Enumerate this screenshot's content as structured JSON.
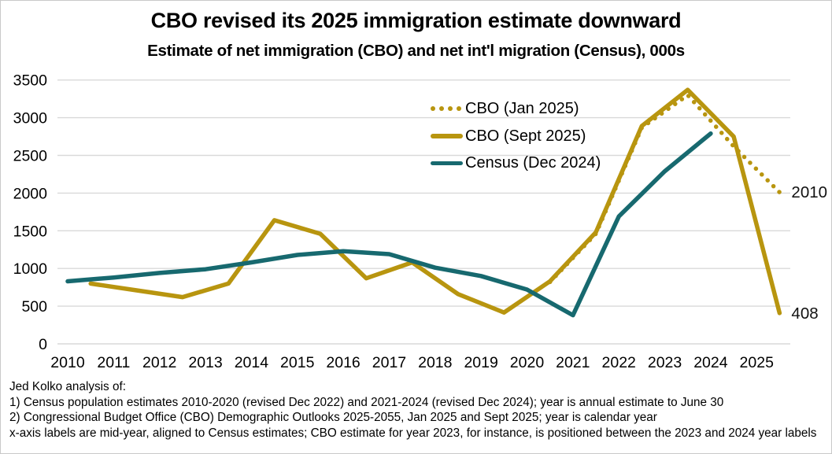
{
  "colors": {
    "gold": "#B8950F",
    "teal": "#17696F",
    "grid": "#D9D9D9",
    "background": "#FFFFFF"
  },
  "chart_data": {
    "type": "line",
    "title": "CBO revised its 2025 immigration estimate downward",
    "subtitle": "Estimate of net immigration (CBO) and net int'l migration (Census), 000s",
    "xlabel": "",
    "ylabel": "",
    "ylim": [
      0,
      3500
    ],
    "y_ticks": [
      0,
      500,
      1000,
      1500,
      2000,
      2500,
      3000,
      3500
    ],
    "x_ticks": [
      2010,
      2011,
      2012,
      2013,
      2014,
      2015,
      2016,
      2017,
      2018,
      2019,
      2020,
      2021,
      2022,
      2023,
      2024,
      2025
    ],
    "grid": "horizontal-only",
    "legend_position": "top-right-inside",
    "series": [
      {
        "id": "cbo-jan-2025",
        "name": "CBO (Jan 2025)",
        "style": "dotted",
        "color": "#B8950F",
        "color_key": "gold",
        "x_offset": 0.5,
        "years": [
          2020,
          2021,
          2022,
          2023,
          2024,
          2025
        ],
        "values": [
          820,
          1460,
          2870,
          3300,
          2620,
          2010
        ]
      },
      {
        "id": "cbo-sept-2025",
        "name": "CBO (Sept 2025)",
        "style": "solid",
        "color": "#B8950F",
        "color_key": "gold",
        "x_offset": 0.5,
        "years": [
          2010,
          2011,
          2012,
          2013,
          2014,
          2015,
          2016,
          2017,
          2018,
          2019,
          2020,
          2021,
          2022,
          2023,
          2024,
          2025
        ],
        "values": [
          800,
          710,
          620,
          800,
          1640,
          1460,
          870,
          1080,
          660,
          415,
          830,
          1480,
          2890,
          3370,
          2750,
          408
        ]
      },
      {
        "id": "census-dec-2024",
        "name": "Census (Dec 2024)",
        "style": "solid",
        "color": "#17696F",
        "color_key": "teal",
        "x_offset": 0,
        "years": [
          2010,
          2011,
          2012,
          2013,
          2014,
          2015,
          2016,
          2017,
          2018,
          2019,
          2020,
          2021,
          2022,
          2023,
          2024
        ],
        "values": [
          830,
          880,
          940,
          990,
          1080,
          1180,
          1230,
          1190,
          1010,
          900,
          720,
          380,
          1690,
          2290,
          2790
        ]
      }
    ],
    "annotations": [
      {
        "text": "2010",
        "series": "cbo-jan-2025",
        "position": "line-end-right"
      },
      {
        "text": "408",
        "series": "cbo-sept-2025",
        "position": "line-end-right"
      }
    ]
  },
  "footnotes": {
    "lines": [
      "Jed Kolko analysis of:",
      "1) Census population estimates 2010-2020 (revised Dec 2022) and 2021-2024 (revised Dec 2024); year is annual estimate to June 30",
      "2) Congressional Budget Office (CBO) Demographic Outlooks 2025-2055, Jan 2025 and Sept 2025; year is calendar year",
      "x-axis labels are mid-year, aligned to Census estimates; CBO estimate for year 2023, for instance, is positioned between the 2023 and 2024 year labels"
    ]
  }
}
